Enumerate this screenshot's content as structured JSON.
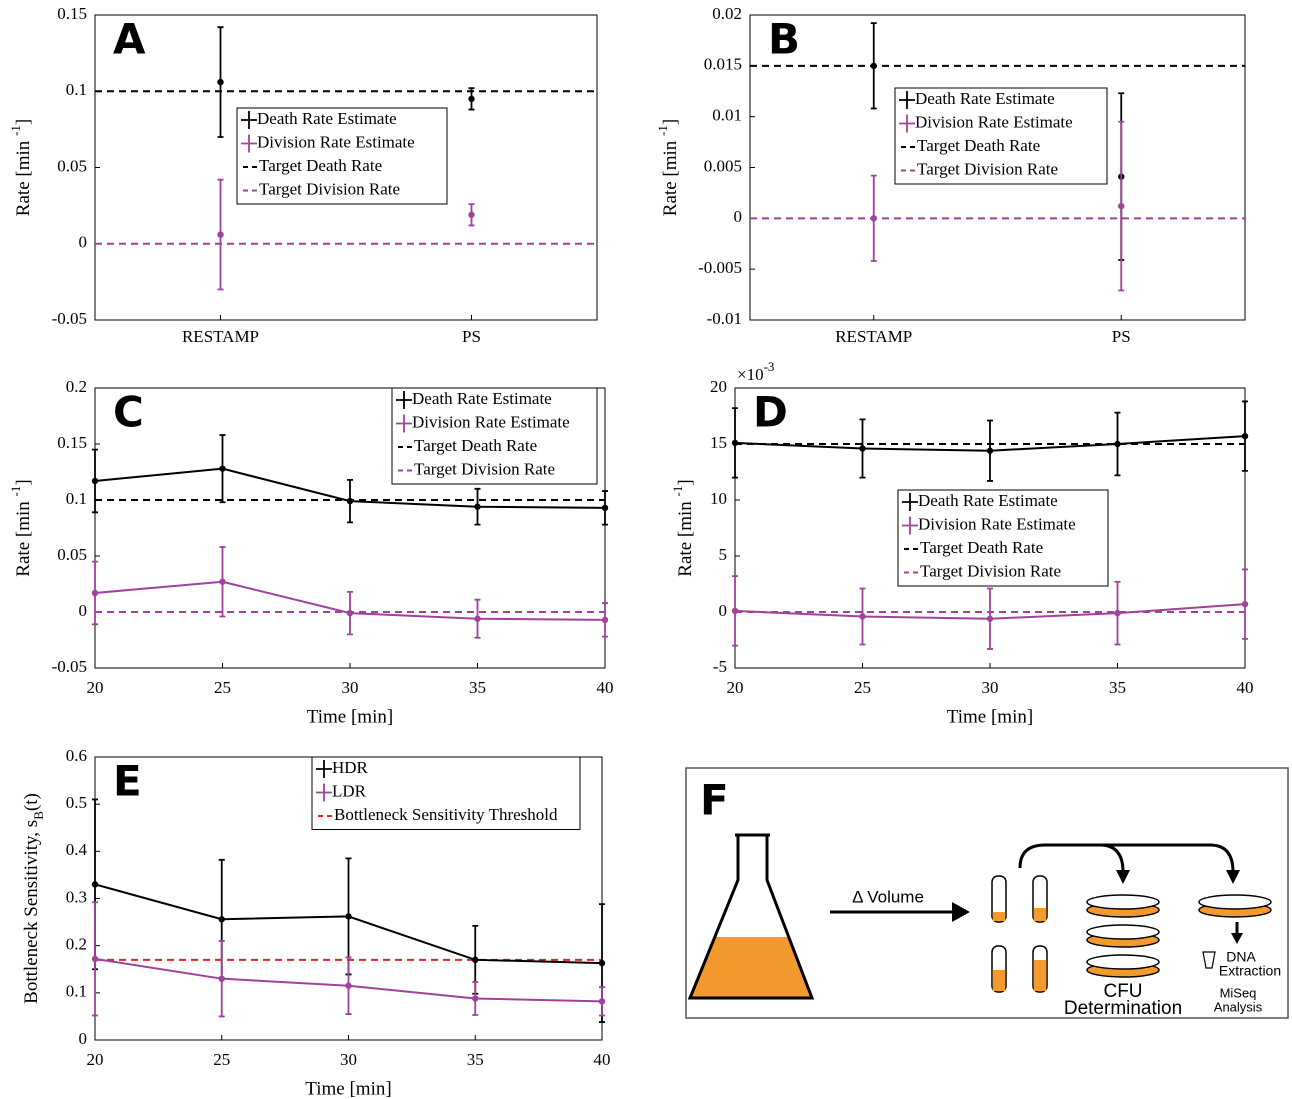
{
  "chart_data": [
    {
      "type": "errorbar",
      "label": "A",
      "ylabel": "Rate [min ",
      "ylabel_sup": "-1",
      "ylabel_end": "]",
      "categories": [
        "RESTAMP",
        "PS"
      ],
      "ylim": [
        -0.05,
        0.15
      ],
      "yticks": [
        -0.05,
        0,
        0.05,
        0.1,
        0.15
      ],
      "series": [
        {
          "name": "Death Rate Estimate",
          "color": "#000000",
          "values": [
            0.106,
            0.095
          ],
          "errors": [
            0.036,
            0.007
          ]
        },
        {
          "name": "Division Rate Estimate",
          "color": "#a0419b",
          "values": [
            0.006,
            0.019
          ],
          "errors": [
            0.036,
            0.007
          ]
        }
      ],
      "reference_lines": [
        {
          "name": "Target Death Rate",
          "value": 0.1,
          "color": "#000000"
        },
        {
          "name": "Target Division Rate",
          "value": 0,
          "color": "#a0419b"
        }
      ]
    },
    {
      "type": "errorbar",
      "label": "B",
      "ylabel": "Rate [min ",
      "ylabel_sup": "-1",
      "ylabel_end": "]",
      "categories": [
        "RESTAMP",
        "PS"
      ],
      "ylim": [
        -0.01,
        0.02
      ],
      "yticks": [
        -0.01,
        -0.005,
        0,
        0.005,
        0.01,
        0.015,
        0.02
      ],
      "series": [
        {
          "name": "Death Rate Estimate",
          "color": "#000000",
          "values": [
            0.015,
            0.0041
          ],
          "errors": [
            0.0042,
            0.0082
          ]
        },
        {
          "name": "Division Rate Estimate",
          "color": "#a0419b",
          "values": [
            0,
            0.0012
          ],
          "errors": [
            0.0042,
            0.0083
          ]
        }
      ],
      "reference_lines": [
        {
          "name": "Target Death Rate",
          "value": 0.015,
          "color": "#000000"
        },
        {
          "name": "Target Division Rate",
          "value": 0,
          "color": "#a0419b"
        }
      ]
    },
    {
      "type": "line",
      "label": "C",
      "ylabel": "Rate [min ",
      "ylabel_sup": "-1",
      "ylabel_end": "]",
      "xlabel": "Time [min]",
      "x": [
        20,
        25,
        30,
        35,
        40
      ],
      "xlim": [
        20,
        40
      ],
      "xticks": [
        20,
        25,
        30,
        35,
        40
      ],
      "ylim": [
        -0.05,
        0.2
      ],
      "yticks": [
        -0.05,
        0,
        0.05,
        0.1,
        0.15,
        0.2
      ],
      "series": [
        {
          "name": "Death Rate Estimate",
          "color": "#000000",
          "values": [
            0.117,
            0.128,
            0.099,
            0.094,
            0.093
          ],
          "errors": [
            0.028,
            0.03,
            0.019,
            0.016,
            0.015
          ]
        },
        {
          "name": "Division Rate Estimate",
          "color": "#a0419b",
          "values": [
            0.017,
            0.027,
            -0.001,
            -0.006,
            -0.007
          ],
          "errors": [
            0.028,
            0.031,
            0.019,
            0.017,
            0.015
          ]
        }
      ],
      "reference_lines": [
        {
          "name": "Target Death Rate",
          "value": 0.1,
          "color": "#000000"
        },
        {
          "name": "Target Division Rate",
          "value": 0,
          "color": "#a0419b"
        }
      ]
    },
    {
      "type": "line",
      "label": "D",
      "ylabel": "Rate [min ",
      "ylabel_sup": "-1",
      "ylabel_end": "]",
      "xlabel": "Time [min]",
      "multiplier": "×10",
      "multiplier_exp": "-3",
      "x": [
        20,
        25,
        30,
        35,
        40
      ],
      "xlim": [
        20,
        40
      ],
      "xticks": [
        20,
        25,
        30,
        35,
        40
      ],
      "ylim": [
        -5,
        20
      ],
      "yticks": [
        -5,
        0,
        5,
        10,
        15,
        20
      ],
      "series": [
        {
          "name": "Death Rate Estimate",
          "color": "#000000",
          "values": [
            15.1,
            14.6,
            14.4,
            15.0,
            15.7
          ],
          "errors": [
            3.1,
            2.6,
            2.7,
            2.8,
            3.1
          ]
        },
        {
          "name": "Division Rate Estimate",
          "color": "#a0419b",
          "values": [
            0.1,
            -0.4,
            -0.6,
            -0.1,
            0.7
          ],
          "errors": [
            3.1,
            2.5,
            2.7,
            2.8,
            3.1
          ]
        }
      ],
      "reference_lines": [
        {
          "name": "Target Death Rate",
          "value": 15,
          "color": "#000000"
        },
        {
          "name": "Target Division Rate",
          "value": 0,
          "color": "#a0419b"
        }
      ]
    },
    {
      "type": "line",
      "label": "E",
      "ylabel": "Bottleneck Sensitivity, s",
      "ylabel_sub": "B",
      "ylabel_end": "(t)",
      "xlabel": "Time [min]",
      "x": [
        20,
        25,
        30,
        35,
        40
      ],
      "xlim": [
        20,
        40
      ],
      "xticks": [
        20,
        25,
        30,
        35,
        40
      ],
      "ylim": [
        0,
        0.6
      ],
      "yticks": [
        0,
        0.1,
        0.2,
        0.3,
        0.4,
        0.5,
        0.6
      ],
      "series": [
        {
          "name": "HDR",
          "color": "#000000",
          "values": [
            0.33,
            0.256,
            0.262,
            0.17,
            0.163
          ],
          "errors": [
            0.18,
            0.126,
            0.123,
            0.072,
            0.125
          ]
        },
        {
          "name": "LDR",
          "color": "#a0419b",
          "values": [
            0.172,
            0.13,
            0.115,
            0.088,
            0.082
          ],
          "errors": [
            0.12,
            0.08,
            0.06,
            0.035,
            0.03
          ]
        }
      ],
      "reference_lines": [
        {
          "name": "Bottleneck Sensitivity Threshold",
          "value": 0.17,
          "color": "#e8211d"
        }
      ]
    }
  ],
  "diagram": {
    "label": "F",
    "arrow_label": "Δ Volume",
    "cfu": [
      "CFU",
      "Determination"
    ],
    "dna": [
      "DNA",
      "Extraction"
    ],
    "miseq": [
      "MiSeq",
      "Analysis"
    ]
  }
}
